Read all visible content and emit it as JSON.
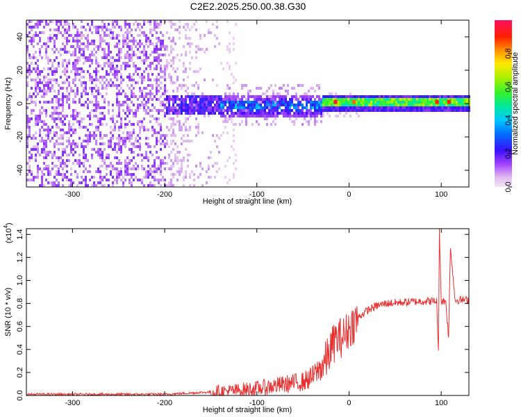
{
  "title": "C2E2.2025.250.00.38.G30",
  "chart_data": [
    {
      "type": "heatmap",
      "name": "spectrogram",
      "xlabel": "Height of straight line (km)",
      "ylabel": "Frequency (Hz)",
      "xlim": [
        -350,
        130
      ],
      "ylim": [
        -50,
        50
      ],
      "xticks": [
        -300,
        -200,
        -100,
        0,
        100
      ],
      "xtick_labels": [
        "-300",
        "-200",
        "-100",
        "0",
        "100"
      ],
      "yticks": [
        -40,
        -20,
        0,
        20,
        40
      ],
      "ytick_labels": [
        "-40",
        "-20",
        "0",
        "20",
        "40"
      ],
      "colorbar": {
        "label": "Normalized spectral amplitude",
        "range": [
          0,
          1
        ],
        "ticks": [
          0.0,
          0.2,
          0.4,
          0.6,
          0.8
        ],
        "tick_labels": [
          "0.0",
          "0.2",
          "0.4",
          "0.6",
          "0.8"
        ]
      },
      "regions": [
        {
          "x_from": -350,
          "x_to": -200,
          "description": "broadband noise, amplitude ~0.1",
          "freq_spread": 50
        },
        {
          "x_from": -200,
          "x_to": -30,
          "description": "signal near 0 Hz with halo",
          "freq_spread": 8
        },
        {
          "x_from": -30,
          "x_to": 130,
          "description": "narrow carrier near 1 Hz, amplitude up to 1.0",
          "freq_spread": 2
        }
      ]
    },
    {
      "type": "line",
      "name": "snr",
      "xlabel": "Height of straight line (km)",
      "ylabel": "SNR (10 * v/v)",
      "scale_label": "(x10",
      "scale_exponent": "4",
      "scale_suffix": ")",
      "xlim": [
        -350,
        130
      ],
      "ylim": [
        0,
        1.45
      ],
      "xticks": [
        -300,
        -200,
        -100,
        0,
        100
      ],
      "xtick_labels": [
        "-300",
        "-200",
        "-100",
        "0",
        "100"
      ],
      "yticks": [
        0.0,
        0.2,
        0.4,
        0.6,
        0.8,
        1.0,
        1.2,
        1.4
      ],
      "ytick_labels": [
        "0.0",
        "0.2",
        "0.4",
        "0.6",
        "0.8",
        "1.0",
        "1.2",
        "1.4"
      ],
      "series": [
        {
          "name": "SNR",
          "color": "#e83030",
          "x": [
            -350,
            -300,
            -250,
            -200,
            -175,
            -150,
            -125,
            -100,
            -75,
            -50,
            -40,
            -30,
            -25,
            -20,
            -15,
            -10,
            -5,
            0,
            10,
            20,
            30,
            40,
            60,
            80,
            95,
            97,
            98,
            100,
            105,
            108,
            110,
            115,
            130
          ],
          "y": [
            0.01,
            0.01,
            0.01,
            0.01,
            0.02,
            0.03,
            0.04,
            0.06,
            0.09,
            0.12,
            0.16,
            0.25,
            0.3,
            0.4,
            0.48,
            0.5,
            0.52,
            0.58,
            0.68,
            0.74,
            0.78,
            0.8,
            0.81,
            0.82,
            0.82,
            0.36,
            1.45,
            0.82,
            0.82,
            0.5,
            1.3,
            0.83,
            0.83
          ]
        }
      ]
    }
  ]
}
